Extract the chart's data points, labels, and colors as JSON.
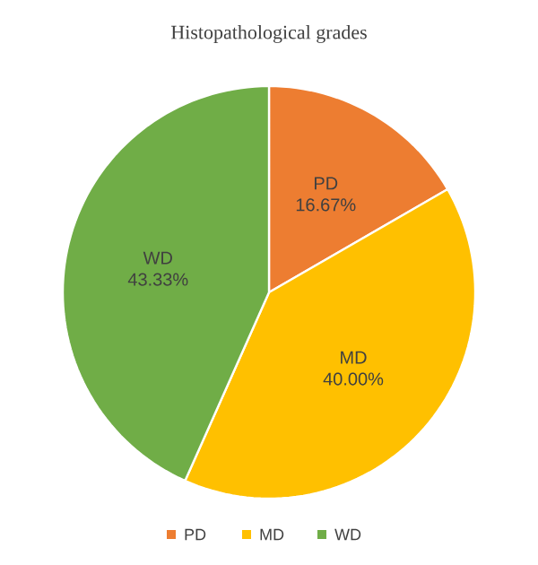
{
  "chart_data": {
    "type": "pie",
    "title": "Histopathological grades",
    "categories": [
      "PD",
      "MD",
      "WD"
    ],
    "values": [
      16.67,
      40.0,
      43.33
    ],
    "value_labels": [
      "16.67%",
      "40.00%",
      "43.33%"
    ],
    "colors": [
      "#ed7d31",
      "#ffc000",
      "#70ad47"
    ],
    "legend": "bottom"
  }
}
